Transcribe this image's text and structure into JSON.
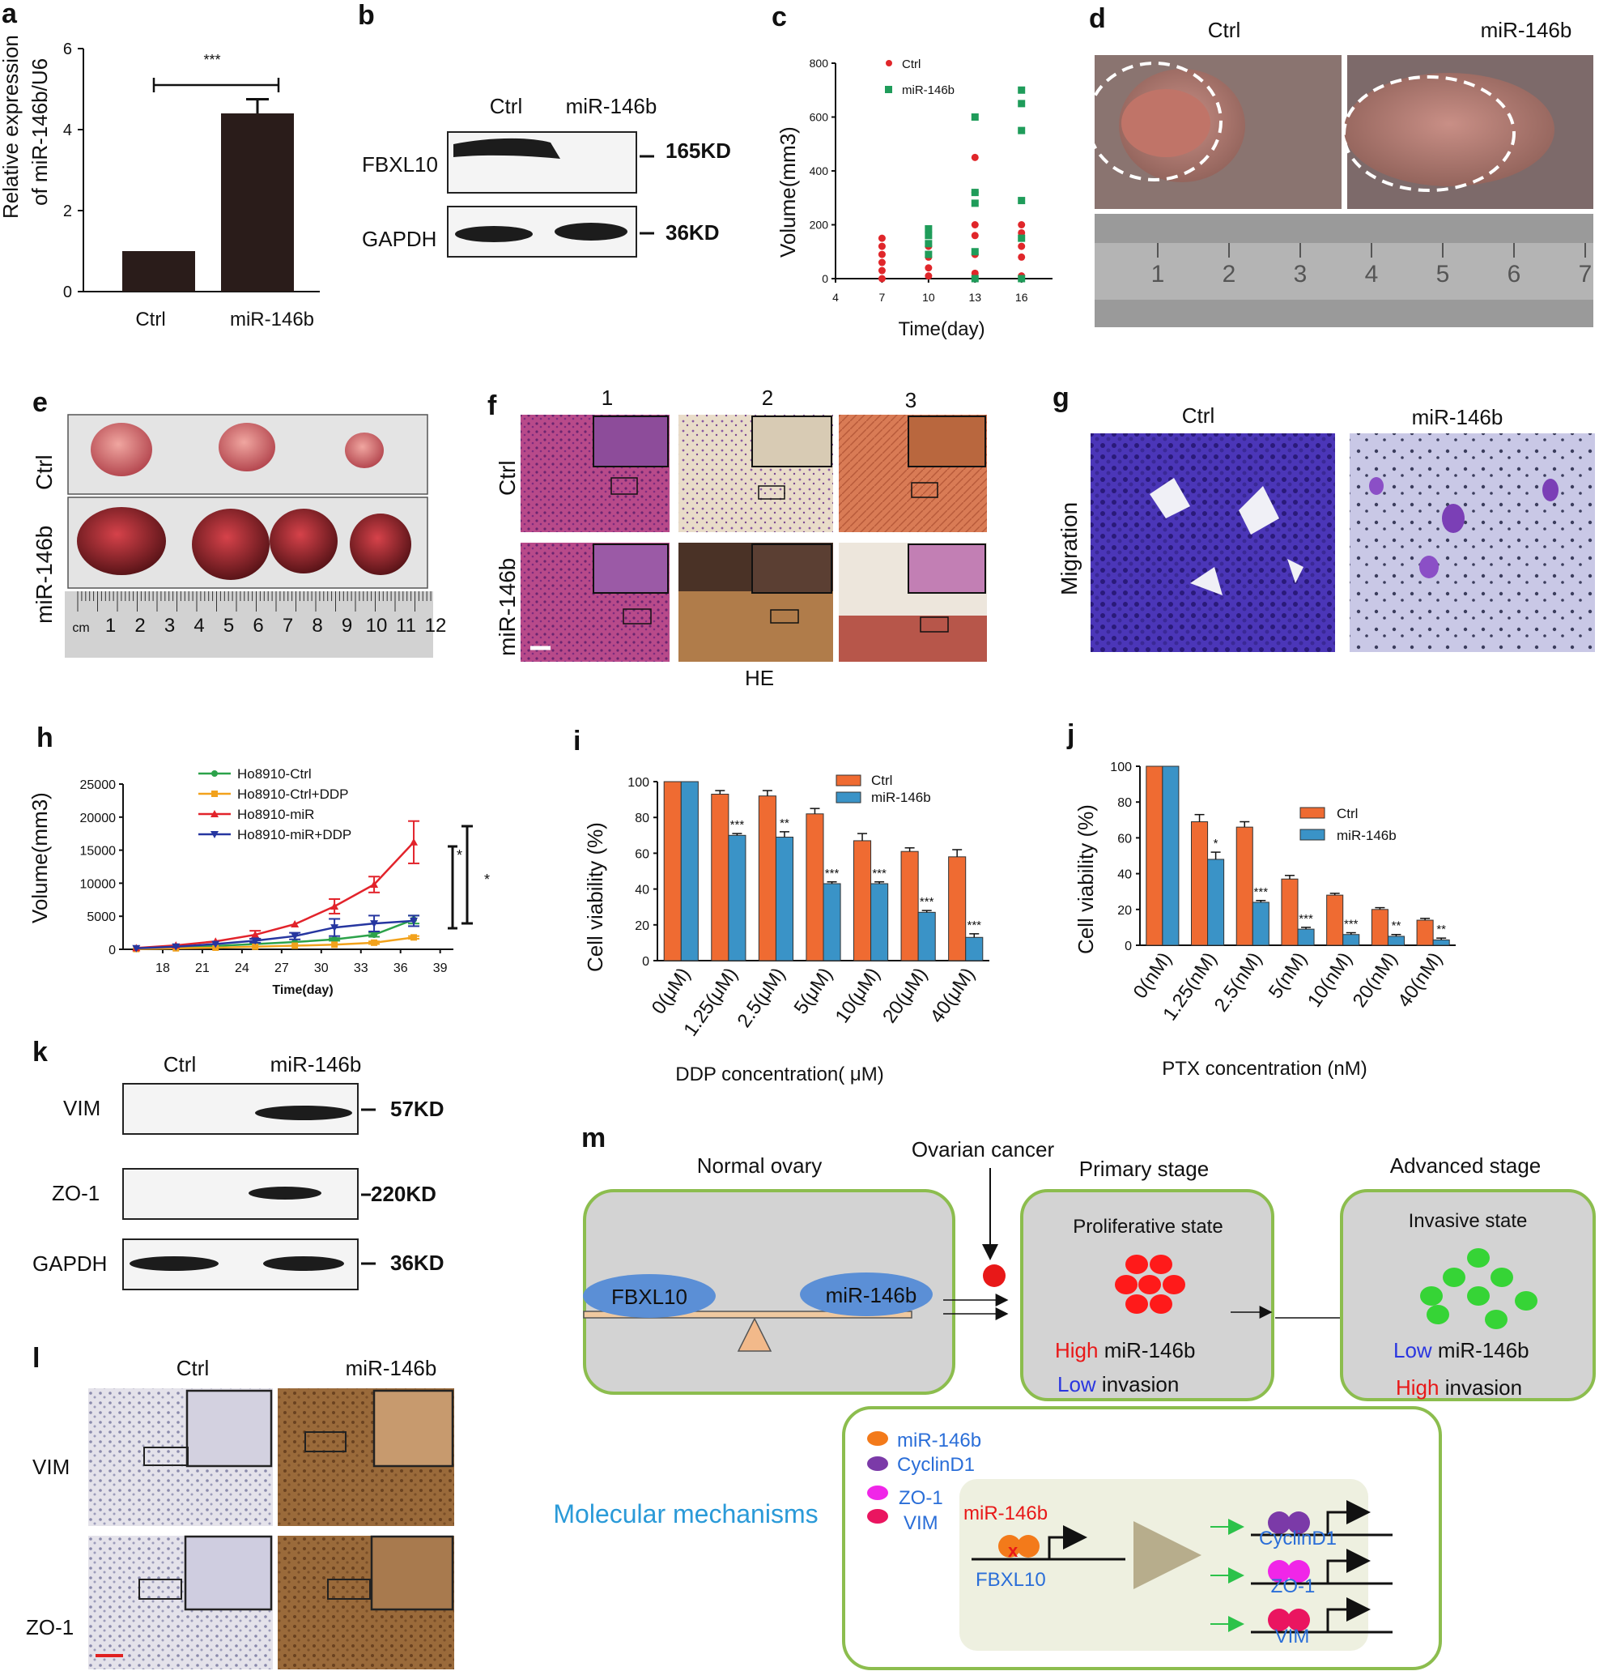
{
  "panels": {
    "a": {
      "letter": "a",
      "ylabel_line1": "Relative expression",
      "ylabel_line2": "of miR-146b/U6",
      "sig": "***",
      "chart_data": {
        "type": "bar",
        "categories": [
          "Ctrl",
          "miR-146b"
        ],
        "values": [
          1.0,
          4.4
        ],
        "errors": [
          0,
          0.35
        ],
        "ylim": [
          0,
          6
        ],
        "yticks": [
          "0",
          "2",
          "4",
          "6"
        ],
        "color": "#2a1c1a"
      }
    },
    "b": {
      "letter": "b",
      "lanes": [
        "Ctrl",
        "miR-146b"
      ],
      "rows": [
        {
          "label": "FBXL10",
          "size": "165KD"
        },
        {
          "label": "GAPDH",
          "size": "36KD"
        }
      ]
    },
    "c": {
      "letter": "c",
      "ylabel": "Volume(mm3)",
      "xlabel": "Time(day)",
      "legend": [
        "Ctrl",
        "miR-146b"
      ],
      "xticks": [
        "4",
        "7",
        "10",
        "13",
        "16"
      ],
      "yticks": [
        "0",
        "200",
        "400",
        "600",
        "800"
      ],
      "chart_data": {
        "type": "scatter",
        "xlim": [
          4,
          18
        ],
        "ylim": [
          0,
          800
        ],
        "series": [
          {
            "name": "Ctrl",
            "color": "#e0262a",
            "points": [
              [
                7,
                0
              ],
              [
                7,
                30
              ],
              [
                7,
                60
              ],
              [
                7,
                90
              ],
              [
                7,
                120
              ],
              [
                7,
                150
              ],
              [
                10,
                10
              ],
              [
                10,
                40
              ],
              [
                10,
                80
              ],
              [
                10,
                120
              ],
              [
                13,
                20
              ],
              [
                13,
                90
              ],
              [
                13,
                160
              ],
              [
                13,
                200
              ],
              [
                13,
                320
              ],
              [
                13,
                450
              ],
              [
                16,
                10
              ],
              [
                16,
                80
              ],
              [
                16,
                120
              ],
              [
                16,
                170
              ],
              [
                16,
                200
              ]
            ]
          },
          {
            "name": "miR-146b",
            "color": "#1f9c5a",
            "points": [
              [
                10,
                90
              ],
              [
                10,
                130
              ],
              [
                10,
                160
              ],
              [
                10,
                185
              ],
              [
                13,
                0
              ],
              [
                13,
                100
              ],
              [
                13,
                280
              ],
              [
                13,
                320
              ],
              [
                13,
                600
              ],
              [
                16,
                0
              ],
              [
                16,
                150
              ],
              [
                16,
                290
              ],
              [
                16,
                550
              ],
              [
                16,
                650
              ],
              [
                16,
                700
              ]
            ]
          }
        ]
      }
    },
    "d": {
      "letter": "d",
      "labels": [
        "Ctrl",
        "miR-146b"
      ],
      "ruler": [
        "1",
        "2",
        "3",
        "4",
        "5",
        "6",
        "7"
      ]
    },
    "e": {
      "letter": "e",
      "rows": [
        "Ctrl",
        "miR-146b"
      ],
      "ruler": [
        "cm",
        "1",
        "2",
        "3",
        "4",
        "5",
        "6",
        "7",
        "8",
        "9",
        "10",
        "11",
        "12"
      ]
    },
    "f": {
      "letter": "f",
      "cols": [
        "1",
        "2",
        "3"
      ],
      "rows": [
        "Ctrl",
        "miR-146b"
      ],
      "caption": "HE"
    },
    "g": {
      "letter": "g",
      "cols": [
        "Ctrl",
        "miR-146b"
      ],
      "row": "Migration"
    },
    "h": {
      "letter": "h",
      "ylabel": "Volume(mm3)",
      "xlabel": "Time(day)",
      "xticks": [
        "18",
        "21",
        "24",
        "27",
        "30",
        "33",
        "36",
        "39"
      ],
      "yticks": [
        "0",
        "5000",
        "10000",
        "15000",
        "20000",
        "25000"
      ],
      "sig": [
        "*",
        "*"
      ],
      "chart_data": {
        "type": "line",
        "xlim": [
          15,
          40
        ],
        "ylim": [
          0,
          25000
        ],
        "series": [
          {
            "name": "Ho8910-Ctrl",
            "color": "#2ca24a",
            "marker": "circle",
            "x": [
              16,
              19,
              22,
              25,
              28,
              31,
              34,
              37
            ],
            "y": [
              100,
              300,
              500,
              800,
              1100,
              1500,
              2200,
              4500
            ],
            "err": [
              0,
              0,
              0,
              0,
              0,
              200,
              300,
              600
            ]
          },
          {
            "name": "Ho8910-Ctrl+DDP",
            "color": "#f2a21c",
            "marker": "square",
            "x": [
              16,
              19,
              22,
              25,
              28,
              31,
              34,
              37
            ],
            "y": [
              50,
              150,
              250,
              400,
              550,
              700,
              1000,
              1800
            ],
            "err": [
              0,
              0,
              0,
              0,
              0,
              0,
              200,
              200
            ]
          },
          {
            "name": "Ho8910-miR",
            "color": "#e2232b",
            "marker": "triangle",
            "x": [
              16,
              19,
              22,
              25,
              28,
              31,
              34,
              37
            ],
            "y": [
              200,
              600,
              1200,
              2200,
              3800,
              6500,
              9800,
              16200
            ],
            "err": [
              0,
              0,
              0,
              600,
              0,
              1100,
              1200,
              3200
            ]
          },
          {
            "name": "Ho8910-miR+DDP",
            "color": "#2636a0",
            "marker": "triangle-down",
            "x": [
              16,
              19,
              22,
              25,
              28,
              31,
              34,
              37
            ],
            "y": [
              150,
              400,
              800,
              1300,
              2000,
              3300,
              3900,
              4300
            ],
            "err": [
              0,
              0,
              0,
              300,
              500,
              1300,
              1200,
              800
            ]
          }
        ]
      }
    },
    "i": {
      "letter": "i",
      "ylabel": "Cell viability (%)",
      "xlabel": "DDP concentration( μM)",
      "legend": [
        "Ctrl",
        "miR-146b"
      ],
      "chart_data": {
        "type": "bar",
        "categories": [
          "0(μM)",
          "1.25(μM)",
          "2.5(μM)",
          "5(μM)",
          "10(μM)",
          "20(μM)",
          "40(μM)"
        ],
        "ylim": [
          0,
          100
        ],
        "yticks": [
          "0",
          "20",
          "40",
          "60",
          "80",
          "100"
        ],
        "series": [
          {
            "name": "Ctrl",
            "color": "#ef6b32",
            "values": [
              100,
              93,
              92,
              82,
              67,
              61,
              58
            ],
            "err": [
              0,
              2,
              3,
              3,
              4,
              2,
              4
            ]
          },
          {
            "name": "miR-146b",
            "color": "#3a93c7",
            "values": [
              100,
              70,
              69,
              43,
              43,
              27,
              13
            ],
            "err": [
              0,
              1,
              3,
              1,
              1,
              1,
              2
            ]
          }
        ],
        "sig": [
          "",
          "***",
          "**",
          "***",
          "***",
          "***",
          "***"
        ]
      }
    },
    "j": {
      "letter": "j",
      "ylabel": "Cell viability (%)",
      "xlabel": "PTX concentration (nM)",
      "legend": [
        "Ctrl",
        "miR-146b"
      ],
      "chart_data": {
        "type": "bar",
        "categories": [
          "0(nM)",
          "1.25(nM)",
          "2.5(nM)",
          "5(nM)",
          "10(nM)",
          "20(nM)",
          "40(nM)"
        ],
        "ylim": [
          0,
          100
        ],
        "yticks": [
          "0",
          "20",
          "40",
          "60",
          "80",
          "100"
        ],
        "series": [
          {
            "name": "Ctrl",
            "color": "#ef6b32",
            "values": [
              100,
              69,
              66,
              37,
              28,
              20,
              14
            ],
            "err": [
              0,
              4,
              3,
              2,
              1,
              1,
              1
            ]
          },
          {
            "name": "miR-146b",
            "color": "#3a93c7",
            "values": [
              100,
              48,
              24,
              9,
              6,
              5,
              3
            ],
            "err": [
              0,
              4,
              1,
              1,
              1,
              1,
              1
            ]
          }
        ],
        "sig": [
          "",
          "*",
          "***",
          "***",
          "***",
          "**",
          "**"
        ]
      }
    },
    "k": {
      "letter": "k",
      "lanes": [
        "Ctrl",
        "miR-146b"
      ],
      "rows": [
        {
          "label": "VIM",
          "size": "57KD"
        },
        {
          "label": "ZO-1",
          "size": "220KD"
        },
        {
          "label": "GAPDH",
          "size": "36KD"
        }
      ]
    },
    "l": {
      "letter": "l",
      "cols": [
        "Ctrl",
        "miR-146b"
      ],
      "rows": [
        "VIM",
        "ZO-1"
      ]
    },
    "m": {
      "letter": "m",
      "normal_title": "Normal ovary",
      "fbxl10": "FBXL10",
      "mir": "miR-146b",
      "cancer_label": "Ovarian cancer",
      "primary_title": "Primary stage",
      "primary_state": "Proliferative state",
      "primary_l1_word": "High",
      "primary_l1_rest": " miR-146b",
      "primary_l2_word": "Low",
      "primary_l2_rest": " invasion",
      "advanced_title": "Advanced stage",
      "advanced_state": "Invasive state",
      "advanced_l1_word": "Low",
      "advanced_l1_rest": " miR-146b",
      "advanced_l2_word": "High",
      "advanced_l2_rest": " invasion",
      "molecular": "Molecular mechanisms",
      "key": [
        "miR-146b",
        "CyclinD1",
        "ZO-1",
        "VIM"
      ],
      "inner_mir": "miR-146b",
      "inner_fbxl10": "FBXL10",
      "targets": [
        "CyclinD1",
        "ZO-1",
        "VIM"
      ]
    }
  }
}
